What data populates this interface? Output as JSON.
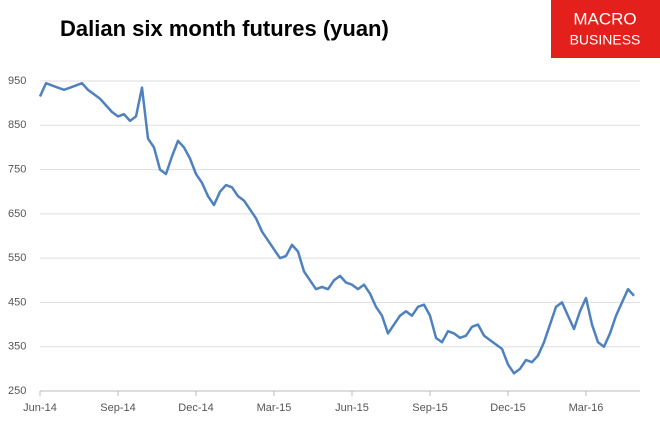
{
  "chart_data": {
    "type": "line",
    "title": "Dalian six month futures (yuan)",
    "logo": [
      "MACRO",
      "BUSINESS"
    ],
    "categories": [
      "Jun-14",
      null,
      null,
      null,
      null,
      null,
      null,
      null,
      null,
      null,
      null,
      null,
      null,
      "Sep-14",
      null,
      null,
      null,
      null,
      null,
      null,
      null,
      null,
      null,
      null,
      null,
      null,
      "Dec-14",
      null,
      null,
      null,
      null,
      null,
      null,
      null,
      null,
      null,
      null,
      null,
      null,
      "Mar-15",
      null,
      null,
      null,
      null,
      null,
      null,
      null,
      null,
      null,
      null,
      null,
      null,
      "Jun-15",
      null,
      null,
      null,
      null,
      null,
      null,
      null,
      null,
      null,
      null,
      null,
      null,
      "Sep-15",
      null,
      null,
      null,
      null,
      null,
      null,
      null,
      null,
      null,
      null,
      null,
      null,
      "Dec-15",
      null,
      null,
      null,
      null,
      null,
      null,
      null,
      null,
      null,
      null,
      null,
      null,
      "Mar-16",
      null,
      null,
      null,
      null,
      null,
      null,
      null,
      null
    ],
    "series": [
      {
        "name": "Dalian six month futures",
        "color": "#4f81bd",
        "values": [
          915,
          945,
          940,
          935,
          930,
          935,
          940,
          945,
          930,
          920,
          910,
          895,
          880,
          870,
          875,
          860,
          870,
          935,
          820,
          800,
          750,
          740,
          780,
          815,
          800,
          775,
          740,
          720,
          690,
          670,
          700,
          715,
          710,
          690,
          680,
          660,
          640,
          610,
          590,
          570,
          550,
          555,
          580,
          565,
          520,
          500,
          480,
          485,
          480,
          500,
          510,
          495,
          490,
          480,
          490,
          470,
          440,
          420,
          380,
          400,
          420,
          430,
          420,
          440,
          445,
          420,
          370,
          360,
          385,
          380,
          370,
          375,
          395,
          400,
          375,
          365,
          355,
          345,
          310,
          290,
          300,
          320,
          315,
          330,
          360,
          400,
          440,
          450,
          420,
          390,
          430,
          460,
          400,
          360,
          350,
          380,
          420,
          450,
          480,
          465
        ]
      }
    ],
    "ylim": [
      250,
      950
    ],
    "yticks": [
      250,
      350,
      450,
      550,
      650,
      750,
      850,
      950
    ],
    "grid": true
  }
}
